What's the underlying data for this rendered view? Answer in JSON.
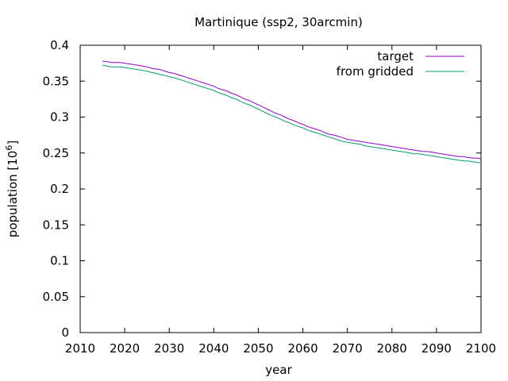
{
  "chart_data": {
    "type": "line",
    "title": "Martinique (ssp2, 30arcmin)",
    "xlabel": "year",
    "ylabel": "population [10^6]",
    "ylabel_base": "population [10",
    "ylabel_sup": "6",
    "ylabel_end": "]",
    "xlim": [
      2010,
      2100
    ],
    "ylim": [
      0,
      0.4
    ],
    "xticks": [
      "2010",
      "2020",
      "2030",
      "2040",
      "2050",
      "2060",
      "2070",
      "2080",
      "2090",
      "2100"
    ],
    "yticks": [
      "0",
      "0.05",
      "0.1",
      "0.15",
      "0.2",
      "0.25",
      "0.3",
      "0.35",
      "0.4"
    ],
    "grid": false,
    "legend_position": "top-right",
    "series": [
      {
        "name": "target",
        "color": "#9400d3",
        "x": [
          2015,
          2016,
          2017,
          2018,
          2019,
          2020,
          2021,
          2022,
          2023,
          2024,
          2025,
          2026,
          2027,
          2028,
          2029,
          2030,
          2031,
          2032,
          2033,
          2034,
          2035,
          2036,
          2037,
          2038,
          2039,
          2040,
          2041,
          2042,
          2043,
          2044,
          2045,
          2046,
          2047,
          2048,
          2049,
          2050,
          2051,
          2052,
          2053,
          2054,
          2055,
          2056,
          2057,
          2058,
          2059,
          2060,
          2061,
          2062,
          2063,
          2064,
          2065,
          2066,
          2067,
          2068,
          2069,
          2070,
          2071,
          2072,
          2073,
          2074,
          2075,
          2076,
          2077,
          2078,
          2079,
          2080,
          2081,
          2082,
          2083,
          2084,
          2085,
          2086,
          2087,
          2088,
          2089,
          2090,
          2091,
          2092,
          2093,
          2094,
          2095,
          2096,
          2097,
          2098,
          2099,
          2100
        ],
        "y": [
          0.378,
          0.377,
          0.376,
          0.376,
          0.376,
          0.375,
          0.374,
          0.373,
          0.372,
          0.371,
          0.37,
          0.368,
          0.367,
          0.366,
          0.364,
          0.362,
          0.361,
          0.359,
          0.357,
          0.355,
          0.353,
          0.351,
          0.349,
          0.347,
          0.345,
          0.343,
          0.34,
          0.338,
          0.336,
          0.333,
          0.331,
          0.328,
          0.325,
          0.323,
          0.32,
          0.317,
          0.314,
          0.311,
          0.308,
          0.305,
          0.303,
          0.3,
          0.297,
          0.295,
          0.292,
          0.29,
          0.287,
          0.285,
          0.283,
          0.281,
          0.278,
          0.276,
          0.275,
          0.273,
          0.271,
          0.269,
          0.268,
          0.267,
          0.266,
          0.265,
          0.264,
          0.263,
          0.262,
          0.261,
          0.26,
          0.259,
          0.258,
          0.257,
          0.256,
          0.255,
          0.254,
          0.253,
          0.252,
          0.252,
          0.251,
          0.25,
          0.249,
          0.248,
          0.247,
          0.246,
          0.245,
          0.245,
          0.244,
          0.243,
          0.243,
          0.242
        ]
      },
      {
        "name": "from gridded",
        "color": "#009e73",
        "x": [
          2015,
          2016,
          2017,
          2018,
          2019,
          2020,
          2021,
          2022,
          2023,
          2024,
          2025,
          2026,
          2027,
          2028,
          2029,
          2030,
          2031,
          2032,
          2033,
          2034,
          2035,
          2036,
          2037,
          2038,
          2039,
          2040,
          2041,
          2042,
          2043,
          2044,
          2045,
          2046,
          2047,
          2048,
          2049,
          2050,
          2051,
          2052,
          2053,
          2054,
          2055,
          2056,
          2057,
          2058,
          2059,
          2060,
          2061,
          2062,
          2063,
          2064,
          2065,
          2066,
          2067,
          2068,
          2069,
          2070,
          2071,
          2072,
          2073,
          2074,
          2075,
          2076,
          2077,
          2078,
          2079,
          2080,
          2081,
          2082,
          2083,
          2084,
          2085,
          2086,
          2087,
          2088,
          2089,
          2090,
          2091,
          2092,
          2093,
          2094,
          2095,
          2096,
          2097,
          2098,
          2099,
          2100
        ],
        "y": [
          0.372,
          0.371,
          0.37,
          0.37,
          0.37,
          0.369,
          0.368,
          0.367,
          0.366,
          0.365,
          0.364,
          0.362,
          0.361,
          0.359,
          0.358,
          0.356,
          0.355,
          0.353,
          0.351,
          0.349,
          0.347,
          0.345,
          0.343,
          0.341,
          0.339,
          0.337,
          0.334,
          0.332,
          0.33,
          0.327,
          0.325,
          0.322,
          0.319,
          0.317,
          0.314,
          0.311,
          0.308,
          0.305,
          0.302,
          0.3,
          0.297,
          0.294,
          0.292,
          0.289,
          0.287,
          0.285,
          0.282,
          0.28,
          0.278,
          0.276,
          0.274,
          0.272,
          0.27,
          0.268,
          0.266,
          0.265,
          0.264,
          0.263,
          0.262,
          0.26,
          0.259,
          0.258,
          0.257,
          0.256,
          0.255,
          0.254,
          0.253,
          0.252,
          0.251,
          0.25,
          0.249,
          0.249,
          0.248,
          0.247,
          0.246,
          0.245,
          0.244,
          0.243,
          0.242,
          0.241,
          0.24,
          0.239,
          0.239,
          0.238,
          0.237,
          0.236
        ]
      }
    ]
  }
}
